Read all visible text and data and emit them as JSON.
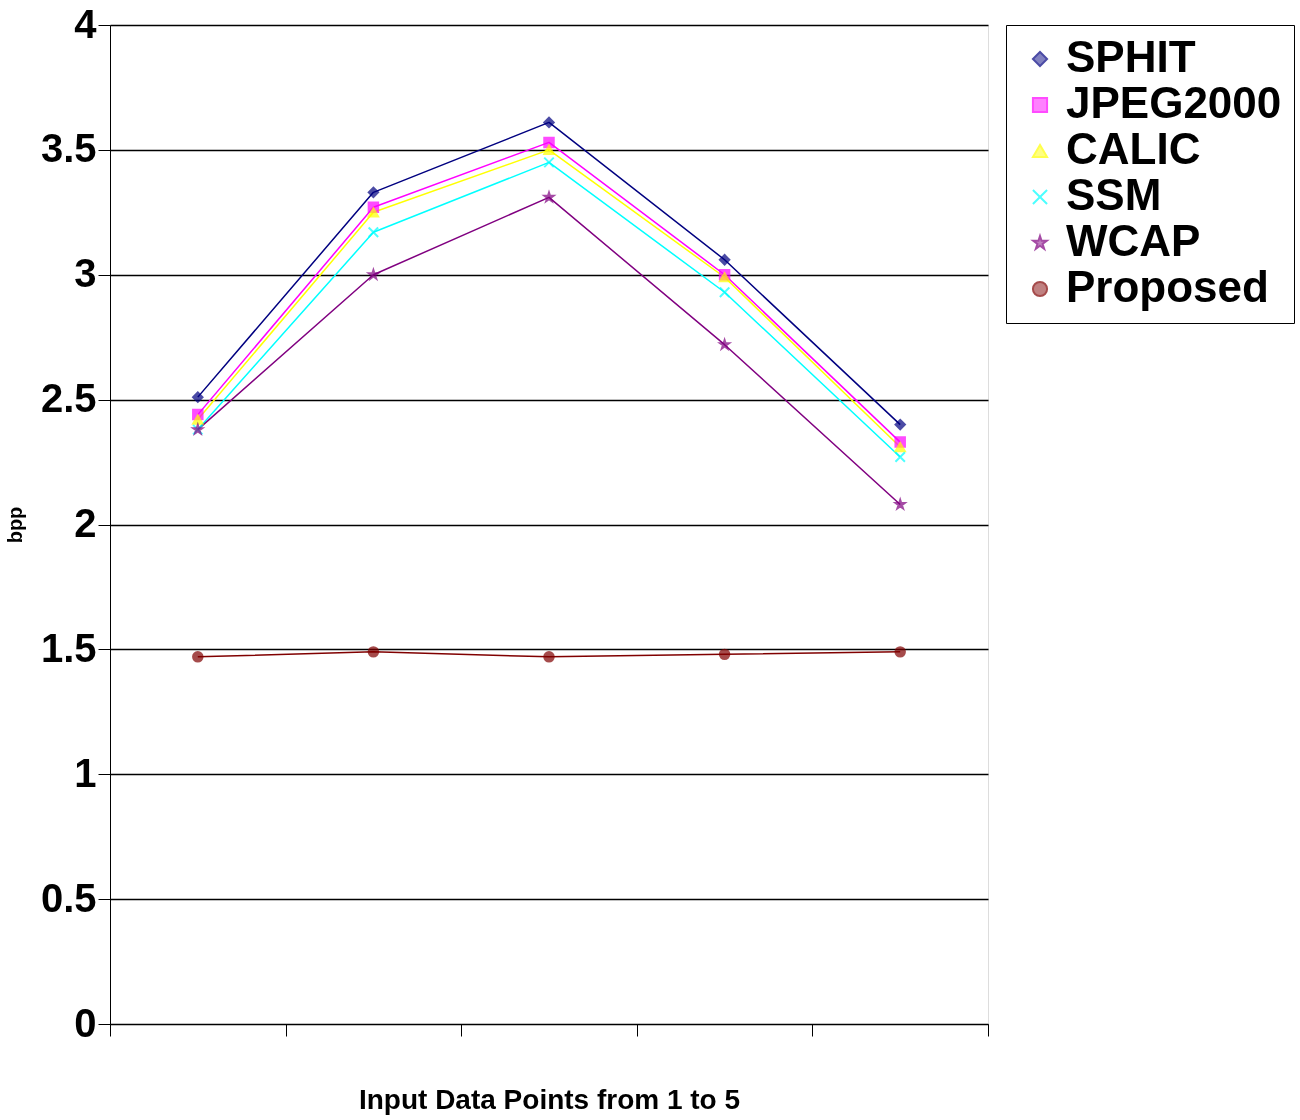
{
  "chart_data": {
    "type": "line",
    "xlabel": "Input Data Points from 1 to 5",
    "ylabel": "bpp",
    "categories": [
      null,
      null,
      null,
      null,
      null
    ],
    "ylim": [
      0,
      4
    ],
    "yticks": [
      0,
      0.5,
      1,
      1.5,
      2,
      2.5,
      3,
      3.5,
      4
    ],
    "grid": "y",
    "legend": "right",
    "line_style": "solid",
    "tick_labels": "y",
    "series": [
      {
        "name": "SPHIT",
        "color": "#000080",
        "marker": "diamond",
        "values": [
          2.51,
          3.33,
          3.61,
          3.06,
          2.4
        ]
      },
      {
        "name": "JPEG2000",
        "color": "#ff00ff",
        "marker": "square",
        "values": [
          2.44,
          3.27,
          3.53,
          3.0,
          2.33
        ]
      },
      {
        "name": "CALIC",
        "color": "#ffff00",
        "marker": "triangle",
        "values": [
          2.42,
          3.25,
          3.5,
          2.99,
          2.31
        ]
      },
      {
        "name": "SSM",
        "color": "#00ffff",
        "marker": "cross",
        "values": [
          2.38,
          3.17,
          3.45,
          2.93,
          2.27
        ]
      },
      {
        "name": "WCAP",
        "color": "#800080",
        "marker": "star",
        "values": [
          2.38,
          3.0,
          3.31,
          2.72,
          2.08
        ]
      },
      {
        "name": "Proposed",
        "color": "#800000",
        "marker": "circle",
        "values": [
          1.47,
          1.49,
          1.47,
          1.48,
          1.49
        ]
      }
    ]
  }
}
